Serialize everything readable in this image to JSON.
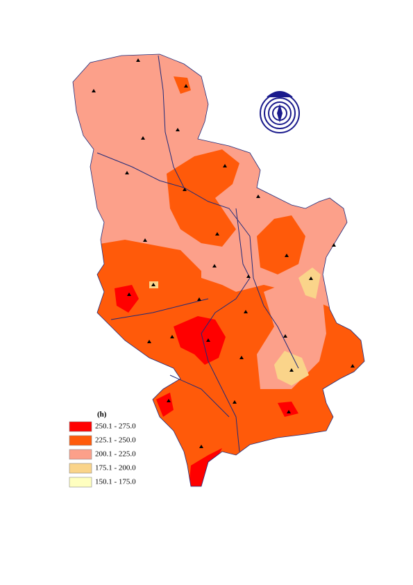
{
  "map": {
    "legend": {
      "title": "(h)",
      "items": [
        {
          "label": "250.1 - 275.0",
          "color": "#ff0000"
        },
        {
          "label": "225.1 - 250.0",
          "color": "#ff5a0a"
        },
        {
          "label": "200.1 - 225.0",
          "color": "#fca08a"
        },
        {
          "label": "175.1 - 200.0",
          "color": "#fad48a"
        },
        {
          "label": "150.1 - 175.0",
          "color": "#ffffc0"
        }
      ]
    }
  }
}
